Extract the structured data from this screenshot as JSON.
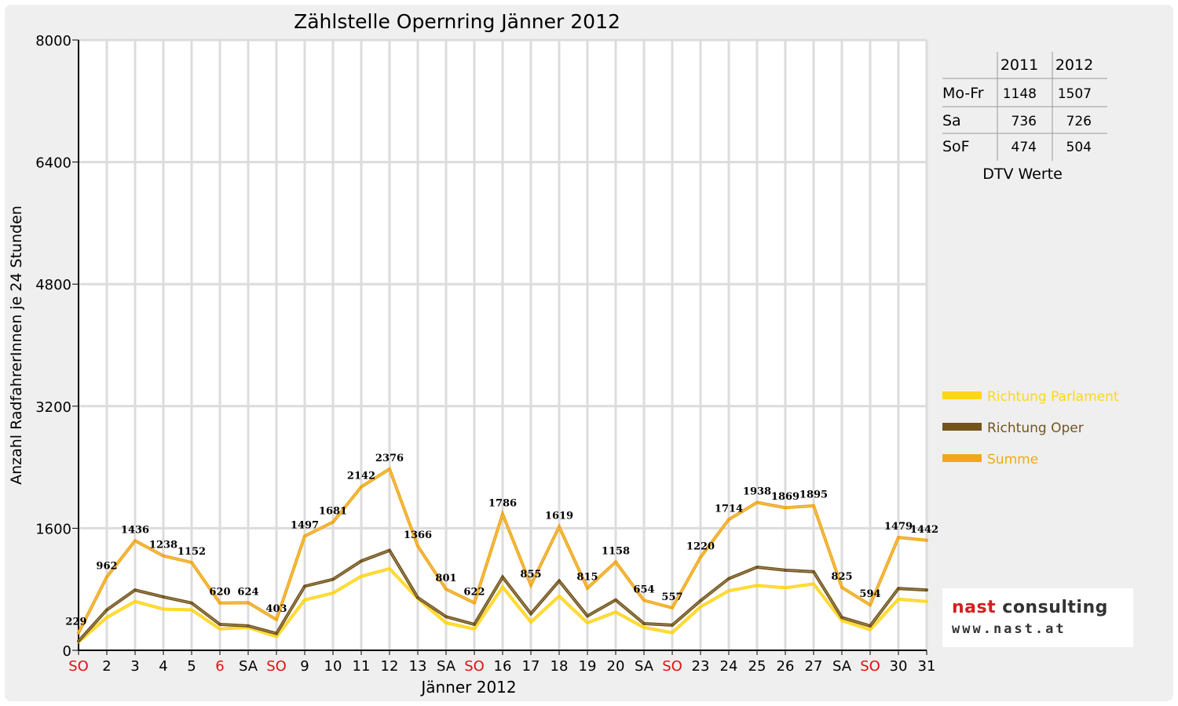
{
  "chart_data": {
    "type": "line",
    "title": "Zählstelle Opernring Jänner 2012",
    "xlabel": "Jänner 2012",
    "ylabel": "Anzahl RadfahrerInnen je 24 Stunden",
    "ylim": [
      0,
      8000
    ],
    "yticks": [
      "0",
      "1600",
      "3200",
      "4800",
      "6400",
      "8000"
    ],
    "grid": true,
    "legend_position": "right",
    "categories": [
      "SO",
      "2",
      "3",
      "4",
      "5",
      "6",
      "SA",
      "SO",
      "9",
      "10",
      "11",
      "12",
      "13",
      "SA",
      "SO",
      "16",
      "17",
      "18",
      "19",
      "20",
      "SA",
      "SO",
      "23",
      "24",
      "25",
      "26",
      "27",
      "SA",
      "SO",
      "30",
      "31"
    ],
    "red_categories": [
      0,
      5,
      7,
      14,
      21,
      28
    ],
    "series": [
      {
        "name": "Richtung Parlament",
        "color": "#ffd51a",
        "values": [
          110,
          430,
          640,
          540,
          530,
          280,
          300,
          180,
          660,
          750,
          970,
          1070,
          680,
          360,
          280,
          830,
          370,
          710,
          360,
          500,
          300,
          230,
          570,
          780,
          850,
          820,
          870,
          390,
          270,
          670,
          640
        ]
      },
      {
        "name": "Richtung Oper",
        "color": "#73551c",
        "values": [
          120,
          530,
          790,
          700,
          620,
          340,
          320,
          220,
          840,
          930,
          1170,
          1310,
          690,
          440,
          340,
          960,
          480,
          910,
          450,
          660,
          350,
          330,
          650,
          940,
          1090,
          1050,
          1030,
          430,
          320,
          810,
          790
        ]
      },
      {
        "name": "Summe",
        "color": "#f0a81a",
        "values": [
          229,
          962,
          1436,
          1238,
          1152,
          620,
          624,
          403,
          1497,
          1681,
          2142,
          2376,
          1366,
          801,
          622,
          1786,
          855,
          1619,
          815,
          1158,
          654,
          557,
          1220,
          1714,
          1938,
          1869,
          1895,
          825,
          594,
          1479,
          1442
        ],
        "labels": [
          "229",
          "962",
          "1436",
          "1238",
          "1152",
          "620",
          "624",
          "403",
          "1497",
          "1681",
          "2142",
          "2376",
          "1366",
          "801",
          "622",
          "1786",
          "855",
          "1619",
          "815",
          "1158",
          "654",
          "557",
          "1220",
          "1714",
          "1938",
          "1869",
          "1895",
          "825",
          "594",
          "1479",
          "1442"
        ]
      }
    ]
  },
  "dtv_table": {
    "headers": [
      "",
      "2011",
      "2012"
    ],
    "rows": [
      {
        "label": "Mo-Fr",
        "y2011": "1148",
        "y2012": "1507"
      },
      {
        "label": "Sa",
        "y2011": "736",
        "y2012": "726"
      },
      {
        "label": "SoF",
        "y2011": "474",
        "y2012": "504"
      }
    ],
    "caption": "DTV Werte"
  },
  "logo": {
    "name_red": "nast ",
    "name_dark": "consulting",
    "url": "www.nast.at"
  }
}
